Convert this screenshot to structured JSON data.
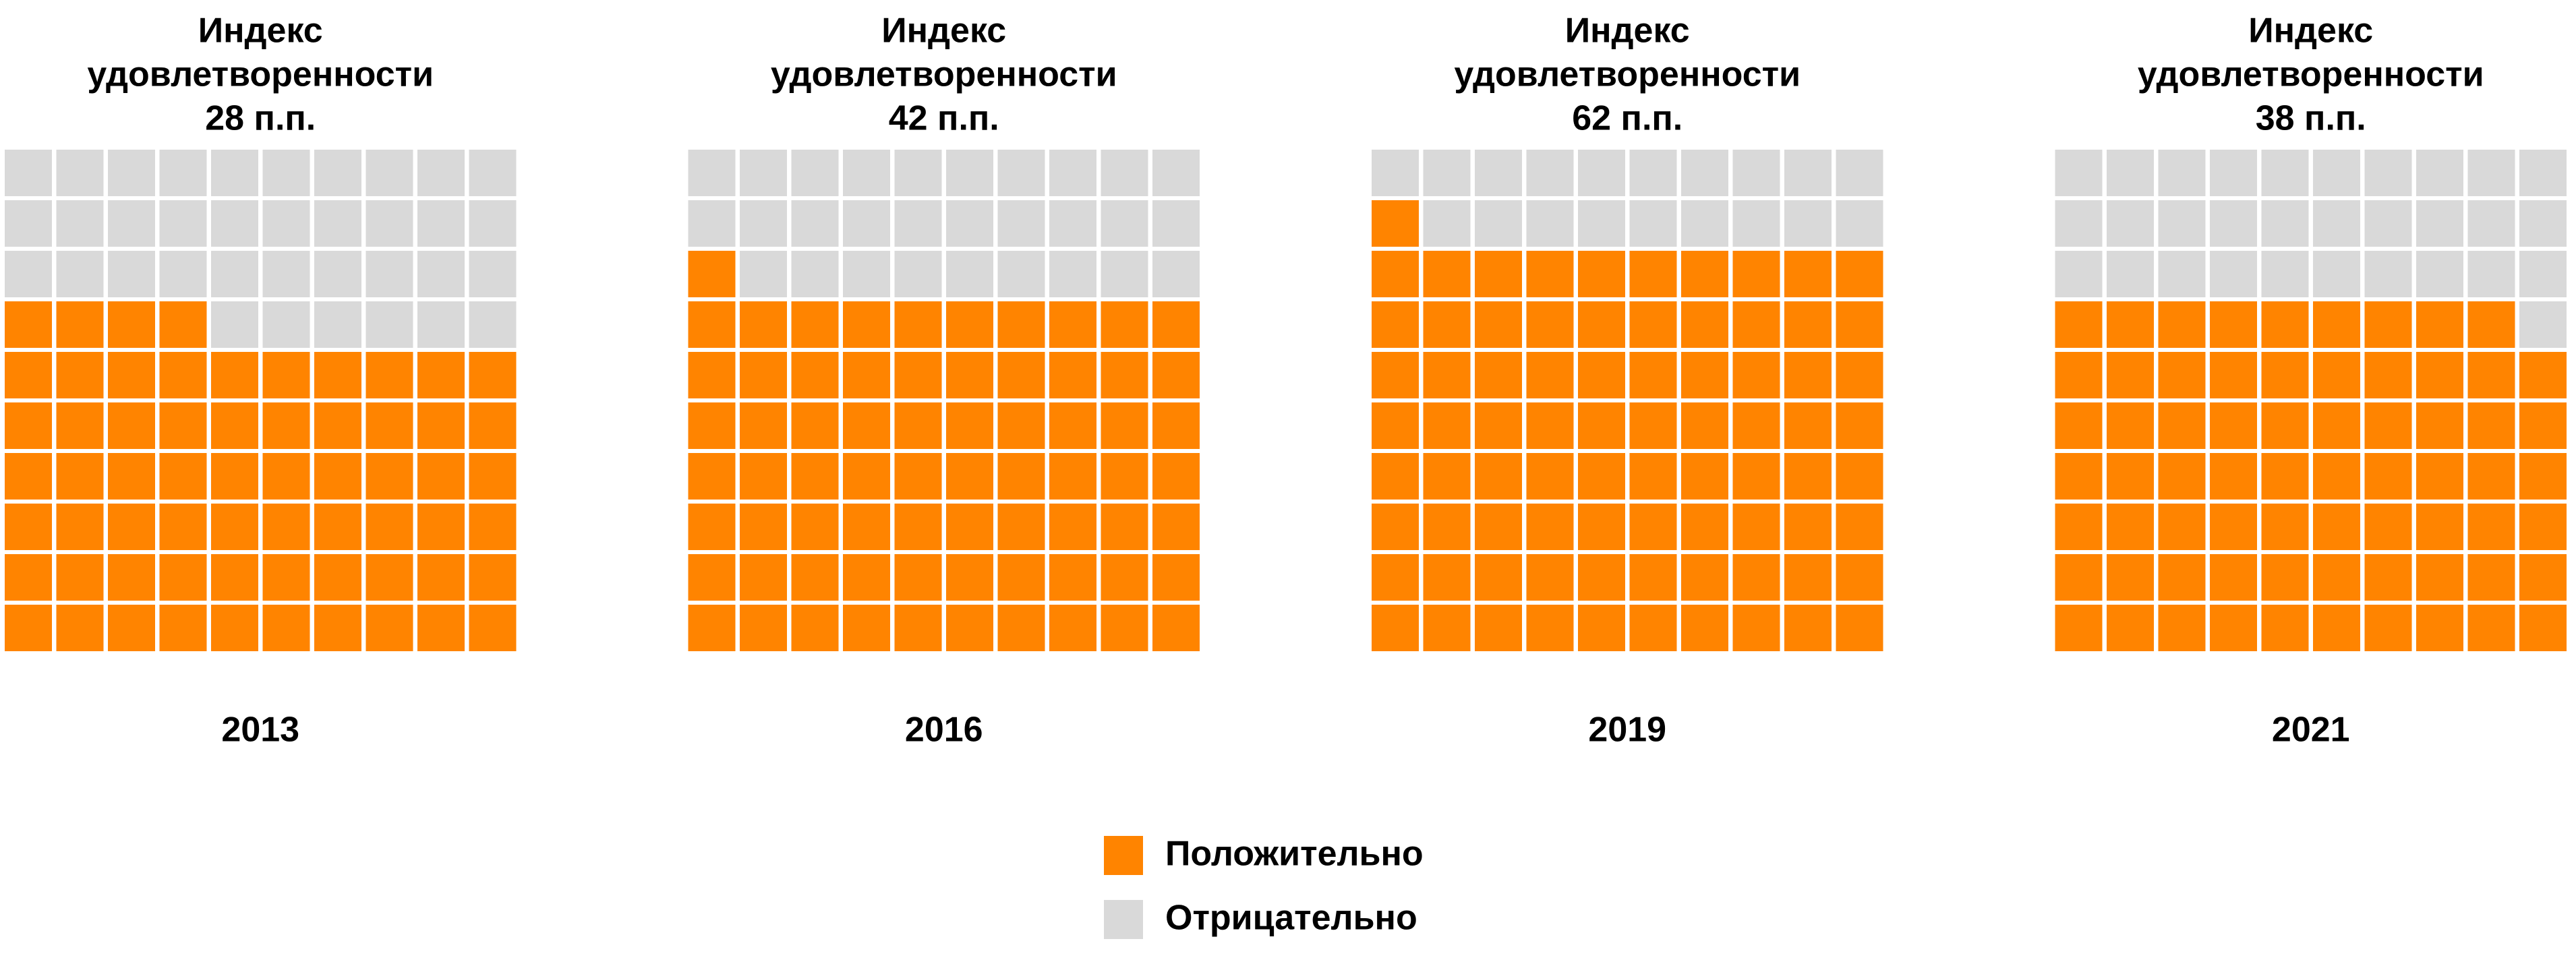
{
  "legend": [
    {
      "name": "Положительно",
      "color": "#ff8400"
    },
    {
      "name": "Отрицательно",
      "color": "#d9d9d9"
    }
  ],
  "chart_data": [
    {
      "type": "waffle",
      "title": [
        "Индекс",
        "удовлетворенности",
        "28 п.п."
      ],
      "label": "2013",
      "values": [
        64,
        36
      ]
    },
    {
      "type": "waffle",
      "title": [
        "Индекс",
        "удовлетворенности",
        "42 п.п."
      ],
      "label": "2016",
      "values": [
        71,
        29
      ]
    },
    {
      "type": "waffle",
      "title": [
        "Индекс",
        "удовлетворенности",
        "62 п.п."
      ],
      "label": "2019",
      "values": [
        81,
        19
      ]
    },
    {
      "type": "waffle",
      "title": [
        "Индекс",
        "удовлетворенности",
        "38 п.п."
      ],
      "label": "2021",
      "values": [
        69,
        31
      ]
    }
  ]
}
